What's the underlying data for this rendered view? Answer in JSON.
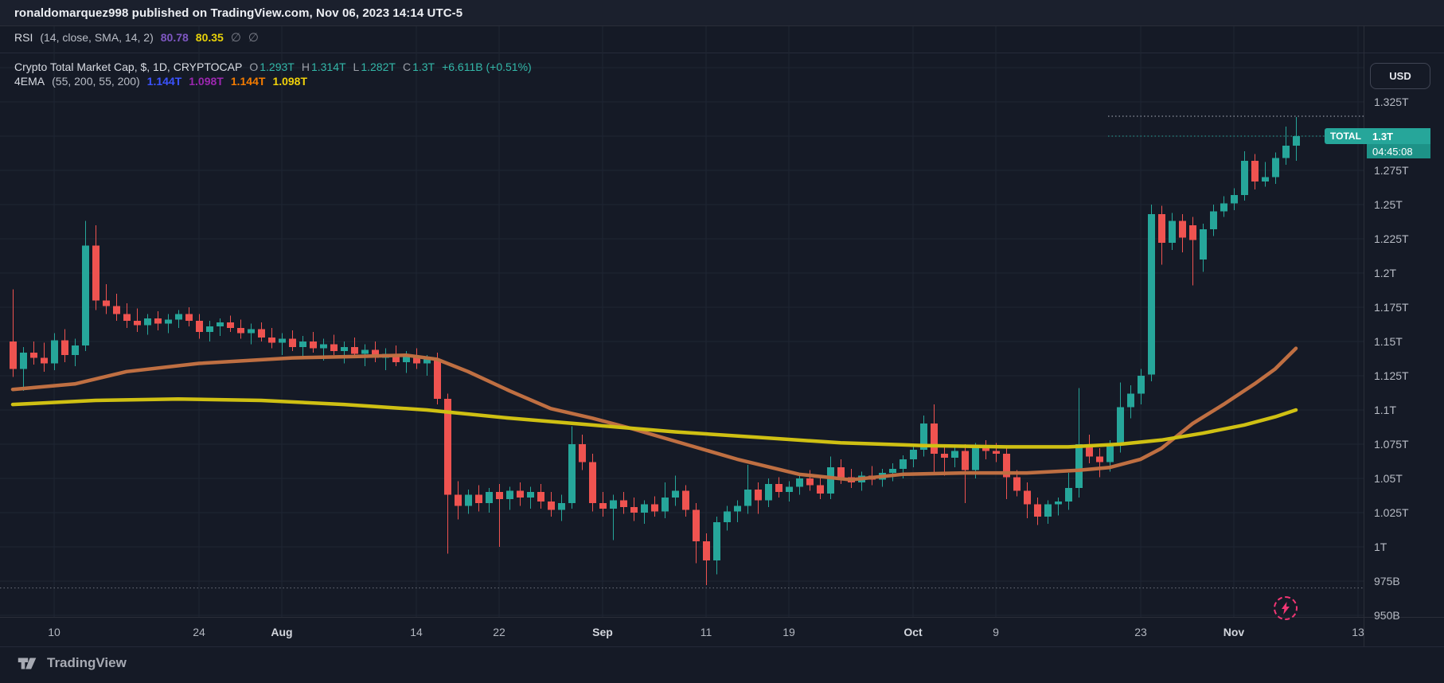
{
  "topbar": {
    "text": "ronaldomarquez998 published on TradingView.com, Nov 06, 2023 14:14 UTC-5"
  },
  "panes": {
    "rsi_legend": {
      "title": "RSI",
      "params": "(14, close, SMA, 14, 2)",
      "value1": "80.78",
      "value2": "80.35",
      "null1": "∅",
      "null2": "∅"
    },
    "main_legend": {
      "title": "Crypto Total Market Cap, $, 1D, CRYPTOCAP",
      "o_label": "O",
      "o_value": "1.293T",
      "h_label": "H",
      "h_value": "1.314T",
      "l_label": "L",
      "l_value": "1.282T",
      "c_label": "C",
      "c_value": "1.3T",
      "change": "+6.611B (+0.51%)"
    },
    "ema_legend": {
      "title": "4EMA",
      "params": "(55, 200, 55, 200)",
      "v1": "1.144T",
      "v2": "1.098T",
      "v3": "1.144T",
      "v4": "1.098T"
    }
  },
  "price_axis": {
    "currency_button": "USD",
    "labels": [
      {
        "text": "1.325T",
        "value": 1.325
      },
      {
        "text": "1.3T",
        "value": 1.3,
        "hidden_by_badge": true
      },
      {
        "text": "1.275T",
        "value": 1.275
      },
      {
        "text": "1.25T",
        "value": 1.25
      },
      {
        "text": "1.225T",
        "value": 1.225
      },
      {
        "text": "1.2T",
        "value": 1.2
      },
      {
        "text": "1.175T",
        "value": 1.175
      },
      {
        "text": "1.15T",
        "value": 1.15
      },
      {
        "text": "1.125T",
        "value": 1.125
      },
      {
        "text": "1.1T",
        "value": 1.1
      },
      {
        "text": "1.075T",
        "value": 1.075
      },
      {
        "text": "1.05T",
        "value": 1.05
      },
      {
        "text": "1.025T",
        "value": 1.025
      },
      {
        "text": "1T",
        "value": 1.0
      },
      {
        "text": "975B",
        "value": 0.975
      },
      {
        "text": "950B",
        "value": 0.95
      }
    ]
  },
  "time_axis": {
    "ticks": [
      {
        "label": "10",
        "index": 4,
        "major": false
      },
      {
        "label": "24",
        "index": 18,
        "major": false
      },
      {
        "label": "Aug",
        "index": 26,
        "major": true
      },
      {
        "label": "14",
        "index": 39,
        "major": false
      },
      {
        "label": "22",
        "index": 47,
        "major": false
      },
      {
        "label": "Sep",
        "index": 57,
        "major": true
      },
      {
        "label": "11",
        "index": 67,
        "major": false
      },
      {
        "label": "19",
        "index": 75,
        "major": false
      },
      {
        "label": "Oct",
        "index": 87,
        "major": true
      },
      {
        "label": "9",
        "index": 95,
        "major": false
      },
      {
        "label": "23",
        "index": 109,
        "major": false
      },
      {
        "label": "Nov",
        "index": 118,
        "major": true
      },
      {
        "label": "13",
        "index": 130,
        "major": false
      }
    ]
  },
  "last_price_badge": {
    "label": "TOTAL",
    "price": "1.3T",
    "countdown": "04:45:08",
    "value": 1.3
  },
  "price_lines": {
    "high_line": {
      "value": 1.3145,
      "style": "dotted",
      "color": "#aeb3bf"
    },
    "last_line": {
      "value": 1.3,
      "style": "dotted",
      "color": "#26a69a"
    },
    "support_line": {
      "value": 0.97,
      "style": "dotted",
      "color": "#8a8e99"
    }
  },
  "footer": {
    "logo_text": "TradingView"
  },
  "colors": {
    "background": "#151a26",
    "topbar_bg": "#1b202d",
    "grid": "#1f2533",
    "separator": "#2a2e39",
    "candle_up": "#26a69a",
    "candle_down": "#ef5350",
    "ema_orange_line": "#bf6f42",
    "ema_yellow_line": "#cfc013",
    "rsi_purple": "#7e57c2",
    "rsi_yellow": "#e8d20a",
    "ohlc_teal": "#33b8a9",
    "badge_teal": "#26a69a",
    "badge_teal_dark": "#1d9287",
    "boost_pink": "#f23674"
  },
  "chart_data": {
    "type": "candlestick",
    "title": "Crypto Total Market Cap",
    "currency": "$",
    "interval": "1D",
    "exchange": "CRYPTOCAP",
    "units": "trillions USD",
    "date_range": "Jul 06, 2023 - Nov 06, 2023 (daily bars)",
    "ylim": [
      0.945,
      1.355
    ],
    "grid": true,
    "candles_format": [
      "open",
      "high",
      "low",
      "close"
    ],
    "candles": [
      [
        1.15,
        1.188,
        1.124,
        1.13
      ],
      [
        1.13,
        1.146,
        1.114,
        1.142
      ],
      [
        1.142,
        1.15,
        1.133,
        1.138
      ],
      [
        1.138,
        1.149,
        1.128,
        1.134
      ],
      [
        1.134,
        1.156,
        1.129,
        1.151
      ],
      [
        1.151,
        1.159,
        1.135,
        1.14
      ],
      [
        1.14,
        1.152,
        1.132,
        1.147
      ],
      [
        1.147,
        1.238,
        1.143,
        1.22
      ],
      [
        1.22,
        1.235,
        1.173,
        1.18
      ],
      [
        1.18,
        1.192,
        1.17,
        1.176
      ],
      [
        1.176,
        1.185,
        1.165,
        1.17
      ],
      [
        1.17,
        1.178,
        1.16,
        1.165
      ],
      [
        1.165,
        1.174,
        1.157,
        1.162
      ],
      [
        1.162,
        1.17,
        1.155,
        1.167
      ],
      [
        1.167,
        1.172,
        1.158,
        1.163
      ],
      [
        1.163,
        1.17,
        1.156,
        1.166
      ],
      [
        1.166,
        1.173,
        1.16,
        1.17
      ],
      [
        1.17,
        1.175,
        1.161,
        1.165
      ],
      [
        1.165,
        1.17,
        1.152,
        1.157
      ],
      [
        1.157,
        1.165,
        1.15,
        1.161
      ],
      [
        1.161,
        1.167,
        1.154,
        1.164
      ],
      [
        1.164,
        1.169,
        1.157,
        1.16
      ],
      [
        1.16,
        1.166,
        1.152,
        1.156
      ],
      [
        1.156,
        1.163,
        1.148,
        1.159
      ],
      [
        1.159,
        1.164,
        1.15,
        1.153
      ],
      [
        1.153,
        1.16,
        1.145,
        1.149
      ],
      [
        1.149,
        1.156,
        1.14,
        1.152
      ],
      [
        1.152,
        1.158,
        1.143,
        1.146
      ],
      [
        1.146,
        1.154,
        1.138,
        1.15
      ],
      [
        1.15,
        1.157,
        1.142,
        1.145
      ],
      [
        1.145,
        1.152,
        1.136,
        1.148
      ],
      [
        1.148,
        1.155,
        1.14,
        1.143
      ],
      [
        1.143,
        1.15,
        1.134,
        1.146
      ],
      [
        1.146,
        1.153,
        1.138,
        1.141
      ],
      [
        1.141,
        1.148,
        1.132,
        1.144
      ],
      [
        1.144,
        1.15,
        1.135,
        1.138
      ],
      [
        1.138,
        1.145,
        1.129,
        1.141
      ],
      [
        1.141,
        1.147,
        1.132,
        1.135
      ],
      [
        1.135,
        1.143,
        1.127,
        1.139
      ],
      [
        1.139,
        1.145,
        1.13,
        1.134
      ],
      [
        1.134,
        1.14,
        1.125,
        1.137
      ],
      [
        1.137,
        1.142,
        1.104,
        1.108
      ],
      [
        1.108,
        1.112,
        0.995,
        1.038
      ],
      [
        1.038,
        1.048,
        1.02,
        1.03
      ],
      [
        1.03,
        1.042,
        1.024,
        1.038
      ],
      [
        1.038,
        1.045,
        1.026,
        1.032
      ],
      [
        1.032,
        1.043,
        1.025,
        1.04
      ],
      [
        1.04,
        1.046,
        1.0,
        1.035
      ],
      [
        1.035,
        1.044,
        1.027,
        1.041
      ],
      [
        1.041,
        1.047,
        1.03,
        1.036
      ],
      [
        1.036,
        1.044,
        1.028,
        1.04
      ],
      [
        1.04,
        1.046,
        1.028,
        1.033
      ],
      [
        1.033,
        1.04,
        1.022,
        1.027
      ],
      [
        1.027,
        1.038,
        1.019,
        1.032
      ],
      [
        1.032,
        1.088,
        1.028,
        1.075
      ],
      [
        1.075,
        1.082,
        1.056,
        1.062
      ],
      [
        1.062,
        1.068,
        1.026,
        1.032
      ],
      [
        1.032,
        1.04,
        1.022,
        1.028
      ],
      [
        1.028,
        1.038,
        1.005,
        1.034
      ],
      [
        1.034,
        1.04,
        1.024,
        1.029
      ],
      [
        1.029,
        1.036,
        1.019,
        1.025
      ],
      [
        1.025,
        1.034,
        1.017,
        1.031
      ],
      [
        1.031,
        1.037,
        1.022,
        1.026
      ],
      [
        1.026,
        1.047,
        1.021,
        1.036
      ],
      [
        1.036,
        1.052,
        1.03,
        1.041
      ],
      [
        1.041,
        1.045,
        1.022,
        1.027
      ],
      [
        1.027,
        1.032,
        0.988,
        1.004
      ],
      [
        1.004,
        1.01,
        0.972,
        0.99
      ],
      [
        0.99,
        1.022,
        0.98,
        1.018
      ],
      [
        1.018,
        1.03,
        1.012,
        1.026
      ],
      [
        1.026,
        1.034,
        1.018,
        1.03
      ],
      [
        1.03,
        1.06,
        1.024,
        1.042
      ],
      [
        1.042,
        1.047,
        1.024,
        1.034
      ],
      [
        1.034,
        1.05,
        1.029,
        1.046
      ],
      [
        1.046,
        1.051,
        1.036,
        1.04
      ],
      [
        1.04,
        1.048,
        1.033,
        1.044
      ],
      [
        1.044,
        1.054,
        1.038,
        1.05
      ],
      [
        1.05,
        1.056,
        1.041,
        1.045
      ],
      [
        1.045,
        1.051,
        1.035,
        1.039
      ],
      [
        1.039,
        1.066,
        1.035,
        1.058
      ],
      [
        1.058,
        1.064,
        1.046,
        1.051
      ],
      [
        1.051,
        1.057,
        1.043,
        1.047
      ],
      [
        1.047,
        1.055,
        1.041,
        1.052
      ],
      [
        1.052,
        1.059,
        1.045,
        1.049
      ],
      [
        1.049,
        1.057,
        1.044,
        1.054
      ],
      [
        1.054,
        1.061,
        1.048,
        1.057
      ],
      [
        1.057,
        1.067,
        1.05,
        1.064
      ],
      [
        1.064,
        1.074,
        1.058,
        1.071
      ],
      [
        1.071,
        1.096,
        1.066,
        1.09
      ],
      [
        1.09,
        1.104,
        1.054,
        1.068
      ],
      [
        1.068,
        1.074,
        1.052,
        1.065
      ],
      [
        1.065,
        1.073,
        1.058,
        1.07
      ],
      [
        1.07,
        1.075,
        1.032,
        1.056
      ],
      [
        1.056,
        1.076,
        1.05,
        1.073
      ],
      [
        1.073,
        1.078,
        1.064,
        1.07
      ],
      [
        1.07,
        1.076,
        1.062,
        1.068
      ],
      [
        1.068,
        1.073,
        1.035,
        1.051
      ],
      [
        1.051,
        1.056,
        1.037,
        1.041
      ],
      [
        1.041,
        1.047,
        1.021,
        1.031
      ],
      [
        1.031,
        1.036,
        1.016,
        1.022
      ],
      [
        1.022,
        1.034,
        1.017,
        1.031
      ],
      [
        1.031,
        1.036,
        1.023,
        1.033
      ],
      [
        1.033,
        1.054,
        1.027,
        1.043
      ],
      [
        1.043,
        1.116,
        1.036,
        1.075
      ],
      [
        1.075,
        1.082,
        1.061,
        1.066
      ],
      [
        1.066,
        1.072,
        1.051,
        1.062
      ],
      [
        1.062,
        1.078,
        1.055,
        1.075
      ],
      [
        1.075,
        1.12,
        1.069,
        1.102
      ],
      [
        1.102,
        1.118,
        1.094,
        1.112
      ],
      [
        1.112,
        1.13,
        1.104,
        1.125
      ],
      [
        1.126,
        1.25,
        1.121,
        1.243
      ],
      [
        1.243,
        1.249,
        1.206,
        1.222
      ],
      [
        1.222,
        1.244,
        1.217,
        1.238
      ],
      [
        1.238,
        1.243,
        1.215,
        1.226
      ],
      [
        1.235,
        1.241,
        1.191,
        1.224
      ],
      [
        1.21,
        1.236,
        1.201,
        1.232
      ],
      [
        1.232,
        1.25,
        1.227,
        1.245
      ],
      [
        1.245,
        1.256,
        1.241,
        1.251
      ],
      [
        1.251,
        1.262,
        1.246,
        1.257
      ],
      [
        1.257,
        1.289,
        1.253,
        1.282
      ],
      [
        1.282,
        1.287,
        1.261,
        1.267
      ],
      [
        1.267,
        1.281,
        1.263,
        1.27
      ],
      [
        1.27,
        1.288,
        1.265,
        1.284
      ],
      [
        1.284,
        1.307,
        1.279,
        1.293
      ],
      [
        1.293,
        1.314,
        1.282,
        1.3
      ]
    ],
    "overlays": [
      {
        "name": "EMA smoothed (orange)",
        "current_value": "1.144T",
        "color": "#bf6f42",
        "points": [
          [
            0,
            1.115
          ],
          [
            6,
            1.119
          ],
          [
            11,
            1.128
          ],
          [
            18,
            1.134
          ],
          [
            27,
            1.138
          ],
          [
            33,
            1.139
          ],
          [
            38,
            1.14
          ],
          [
            41,
            1.137
          ],
          [
            44,
            1.128
          ],
          [
            48,
            1.114
          ],
          [
            52,
            1.101
          ],
          [
            56,
            1.094
          ],
          [
            60,
            1.086
          ],
          [
            65,
            1.075
          ],
          [
            70,
            1.064
          ],
          [
            76,
            1.053
          ],
          [
            81,
            1.049
          ],
          [
            86,
            1.053
          ],
          [
            92,
            1.054
          ],
          [
            98,
            1.054
          ],
          [
            103,
            1.056
          ],
          [
            106,
            1.058
          ],
          [
            109,
            1.064
          ],
          [
            111,
            1.072
          ],
          [
            114,
            1.09
          ],
          [
            117,
            1.104
          ],
          [
            120,
            1.119
          ],
          [
            122,
            1.13
          ],
          [
            124,
            1.145
          ]
        ]
      },
      {
        "name": "EMA smoothed (yellow)",
        "current_value": "1.098T",
        "color": "#cfc013",
        "points": [
          [
            0,
            1.104
          ],
          [
            8,
            1.107
          ],
          [
            16,
            1.108
          ],
          [
            24,
            1.107
          ],
          [
            32,
            1.104
          ],
          [
            40,
            1.1
          ],
          [
            48,
            1.094
          ],
          [
            56,
            1.089
          ],
          [
            64,
            1.084
          ],
          [
            72,
            1.08
          ],
          [
            80,
            1.076
          ],
          [
            88,
            1.074
          ],
          [
            96,
            1.073
          ],
          [
            102,
            1.073
          ],
          [
            107,
            1.075
          ],
          [
            111,
            1.078
          ],
          [
            115,
            1.083
          ],
          [
            119,
            1.089
          ],
          [
            122,
            1.095
          ],
          [
            124,
            1.1
          ]
        ]
      }
    ],
    "rsi": {
      "name": "RSI (14, close, SMA, 14, 2)",
      "values": [
        80.78,
        80.35
      ]
    }
  }
}
